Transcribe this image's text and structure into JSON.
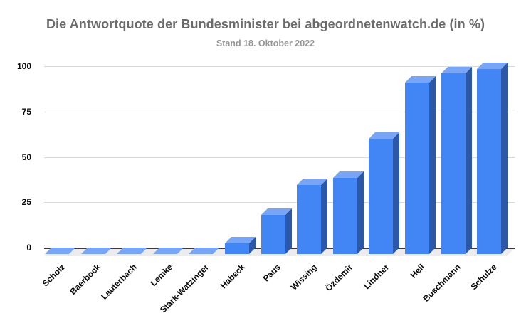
{
  "chart_data": {
    "type": "bar",
    "style": "3d-column",
    "title": "Die Antwortquote der Bundesminister bei abgeordnetenwatch.de (in %)",
    "subtitle": "Stand 18. Oktober 2022",
    "categories": [
      "Scholz",
      "Baerbock",
      "Lauterbach",
      "Lemke",
      "Stark-Watzinger",
      "Habeck",
      "Paus",
      "Wissing",
      "Özdemir",
      "Lindner",
      "Heil",
      "Buschmann",
      "Schulze"
    ],
    "values": [
      0,
      0,
      0,
      0,
      0,
      5,
      20,
      36,
      40,
      61,
      91,
      96,
      98
    ],
    "xlabel": "",
    "ylabel": "",
    "ylim": [
      0,
      100
    ],
    "yticks": [
      0,
      25,
      50,
      75,
      100
    ],
    "grid": true,
    "legend": "none",
    "colors": {
      "bar_front": "#4285f4",
      "bar_top": "#78a5f5",
      "bar_side": "#2d58a8",
      "gridline": "#d9d9d9",
      "axis_line": "#3b3b3b",
      "floor": "#ececef",
      "title": "#6b6b6b",
      "subtitle": "#979797",
      "tick_label": "#0a0a0a"
    }
  }
}
